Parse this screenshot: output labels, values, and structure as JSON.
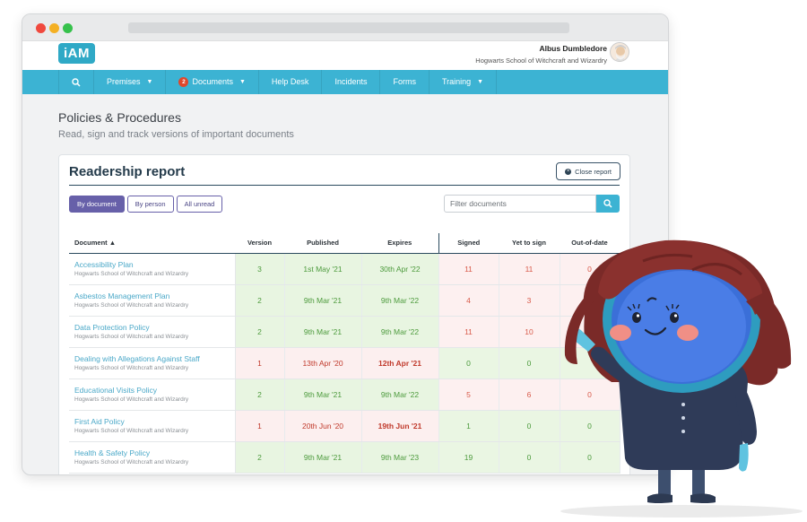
{
  "window": {
    "traffic_lights": [
      "#f0493e",
      "#f4b023",
      "#36c14b"
    ]
  },
  "header": {
    "logo_text": "iAM",
    "user_name": "Albus Dumbledore",
    "user_school": "Hogwarts School of Witchcraft and Wizardry"
  },
  "nav": {
    "search_icon": "search-icon",
    "items": [
      {
        "label": "Premises",
        "has_caret": true
      },
      {
        "label": "Documents",
        "badge": "2",
        "has_caret": true
      },
      {
        "label": "Help Desk"
      },
      {
        "label": "Incidents"
      },
      {
        "label": "Forms"
      },
      {
        "label": "Training",
        "has_caret": true
      }
    ]
  },
  "page": {
    "title": "Policies & Procedures",
    "subtitle": "Read, sign and track versions of important documents"
  },
  "report": {
    "title": "Readership report",
    "close_label": "Close report",
    "tabs": [
      {
        "label": "By document",
        "active": true
      },
      {
        "label": "By person",
        "active": false
      },
      {
        "label": "All unread",
        "active": false
      }
    ],
    "filter_placeholder": "Filter documents",
    "columns": [
      "Document ▲",
      "Version",
      "Published",
      "Expires",
      "Signed",
      "Yet to sign",
      "Out-of-date"
    ],
    "rows": [
      {
        "name": "Accessibility Plan",
        "school": "Hogwarts School of Witchcraft and Wizardry",
        "version": "3",
        "published": "1st May '21",
        "expires": "30th Apr '22",
        "signed": "11",
        "yet": "11",
        "out": "0",
        "status": "ok",
        "signed_tone": "pink"
      },
      {
        "name": "Asbestos Management Plan",
        "school": "Hogwarts School of Witchcraft and Wizardry",
        "version": "2",
        "published": "9th Mar '21",
        "expires": "9th Mar '22",
        "signed": "4",
        "yet": "3",
        "out": "0",
        "status": "ok",
        "signed_tone": "pink"
      },
      {
        "name": "Data Protection Policy",
        "school": "Hogwarts School of Witchcraft and Wizardry",
        "version": "2",
        "published": "9th Mar '21",
        "expires": "9th Mar '22",
        "signed": "11",
        "yet": "10",
        "out": "",
        "status": "ok",
        "signed_tone": "pink"
      },
      {
        "name": "Dealing with Allegations Against Staff",
        "school": "Hogwarts School of Witchcraft and Wizardry",
        "version": "1",
        "published": "13th Apr '20",
        "expires": "12th Apr '21",
        "signed": "0",
        "yet": "0",
        "out": "",
        "status": "expired",
        "signed_tone": "green"
      },
      {
        "name": "Educational Visits Policy",
        "school": "Hogwarts School of Witchcraft and Wizardry",
        "version": "2",
        "published": "9th Mar '21",
        "expires": "9th Mar '22",
        "signed": "5",
        "yet": "6",
        "out": "0",
        "status": "ok",
        "signed_tone": "pink"
      },
      {
        "name": "First Aid Policy",
        "school": "Hogwarts School of Witchcraft and Wizardry",
        "version": "1",
        "published": "20th Jun '20",
        "expires": "19th Jun '21",
        "signed": "1",
        "yet": "0",
        "out": "0",
        "status": "expired",
        "signed_tone": "green"
      },
      {
        "name": "Health & Safety Policy",
        "school": "Hogwarts School of Witchcraft and Wizardry",
        "version": "2",
        "published": "9th Mar '21",
        "expires": "9th Mar '23",
        "signed": "19",
        "yet": "0",
        "out": "0",
        "status": "ok",
        "signed_tone": "green"
      }
    ]
  },
  "colors": {
    "nav_bg": "#3cb3d3",
    "brand": "#2fa9c6",
    "tab_active": "#6760a9",
    "ok_bg": "#e8f5e1",
    "expired_bg": "#fcefef"
  }
}
